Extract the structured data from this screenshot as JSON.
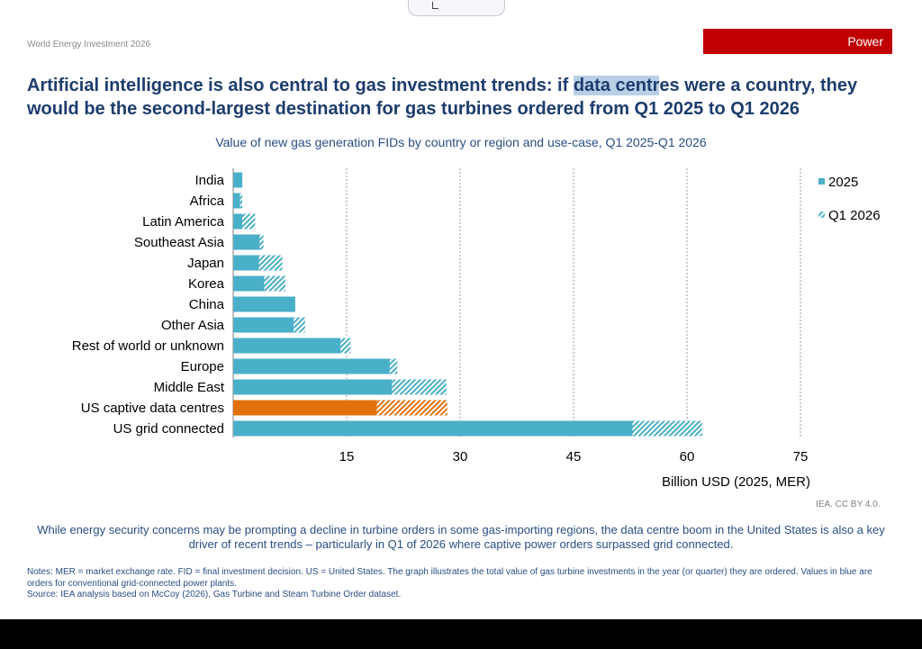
{
  "header": {
    "label": "World Energy Investment 2026",
    "section": "Power"
  },
  "headline": {
    "before": "Artificial intelligence is also central to gas investment trends: if ",
    "highlight": "data centr",
    "after": "es were a country, they would be the second-largest destination for gas turbines ordered from Q1 2025 to Q1 2026"
  },
  "subtitle": "Value of new gas generation FIDs by country or region and use-case, Q1 2025-Q1 2026",
  "colors": {
    "blue": "#4aafc8",
    "orange": "#e2710c",
    "text": "#2a4e84",
    "title": "#1d3c6e",
    "badge": "#c00000"
  },
  "chart_data": {
    "type": "bar",
    "orientation": "horizontal",
    "stacked": true,
    "categories": [
      "India",
      "Africa",
      "Latin America",
      "Southeast Asia",
      "Japan",
      "Korea",
      "China",
      "Other Asia",
      "Rest of world or unknown",
      "Europe",
      "Middle East",
      "US captive data centres",
      "US grid connected"
    ],
    "series": [
      {
        "name": "2025",
        "values": [
          1.2,
          0.9,
          1.2,
          3.5,
          3.4,
          4.1,
          8.2,
          8.0,
          14.2,
          20.7,
          21.0,
          19.0,
          52.8
        ]
      },
      {
        "name": "Q1 2026",
        "values": [
          0,
          0.3,
          1.7,
          0.5,
          3.1,
          2.8,
          0,
          1.5,
          1.3,
          1.0,
          7.2,
          9.3,
          9.2
        ]
      }
    ],
    "xlabel": "Billion USD (2025, MER)",
    "xlim": [
      0,
      75
    ],
    "xticks": [
      15,
      30,
      45,
      60,
      75
    ],
    "grid": "vertical dotted",
    "legend": "top-right",
    "highlight_category": "US captive data centres"
  },
  "credit": "IEA. CC BY 4.0.",
  "body_text": "While energy security concerns may be prompting a decline in turbine orders in some gas-importing regions, the data centre boom in the United States is also a key driver of recent trends – particularly in Q1 of 2026 where captive power orders surpassed grid connected.",
  "notes": {
    "line1": "Notes: MER = market exchange rate. FID = final investment decision. US = United States. The graph illustrates the total value of gas turbine investments in the year (or quarter) they are ordered. Values in blue are orders for conventional grid-connected power plants.",
    "line2": "Source: IEA analysis based on McCoy (2026), Gas Turbine and Steam Turbine Order dataset."
  }
}
